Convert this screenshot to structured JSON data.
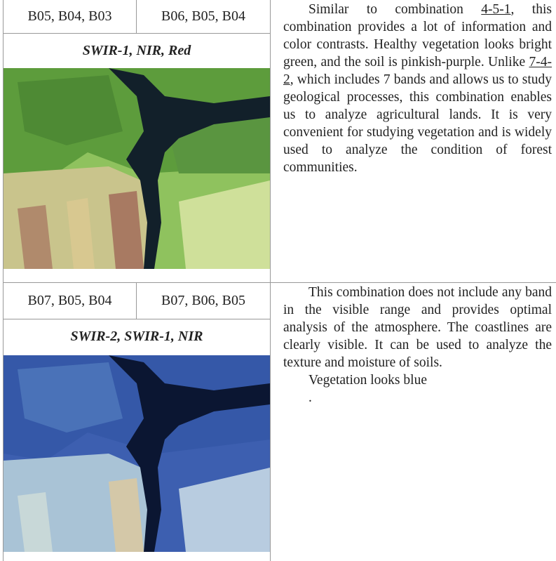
{
  "rows": [
    {
      "bands": [
        "B05, B04, B03",
        "B06, B05, B04"
      ],
      "label": "SWIR-1, NIR, Red",
      "paragraphs": [
        [
          "Similar to combination ",
          {
            "link": "4-5-1"
          },
          ", this combination provides a lot of information and color contrasts. Healthy vegetation looks bright green, and the soil is pinkish-purple. Unlike ",
          {
            "link": "7-4-2"
          },
          ", which includes 7 bands and allows us to study geological processes, this combination enables us to analyze agricultural lands. It is very convenient for studying vegetation and is widely used to analyze the condition of forest communities."
        ]
      ]
    },
    {
      "bands": [
        "B07, B05, B04",
        "B07, B06, B05"
      ],
      "label": "SWIR-2, SWIR-1, NIR",
      "paragraphs": [
        [
          "This combination does not include any band in the visible range and provides optimal analysis of the atmosphere. The coastlines are clearly visible. It can be used to analyze the texture and moisture of soils."
        ],
        [
          "Vegetation looks blue"
        ],
        [
          "."
        ]
      ]
    }
  ]
}
